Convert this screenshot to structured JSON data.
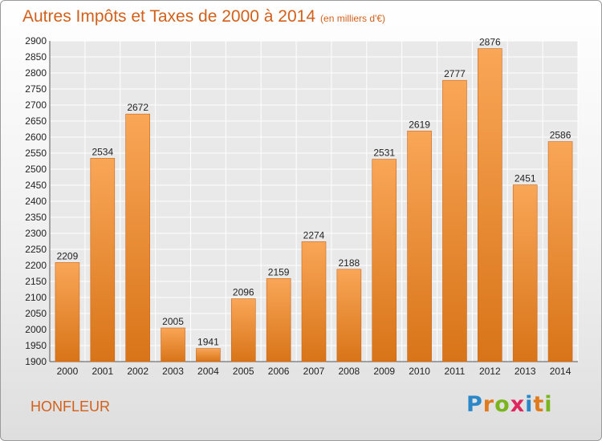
{
  "title": "Autres Impôts et Taxes de 2000 à 2014",
  "subtitle": "(en milliers d'€)",
  "city": "HONFLEUR",
  "logo": {
    "letters": [
      "P",
      "r",
      "o",
      "x",
      "i",
      "t",
      "i"
    ],
    "colors": [
      "#2a88c8",
      "#e07a1c",
      "#7ab51d",
      "#e0245e",
      "#2a88c8",
      "#e07a1c",
      "#7ab51d"
    ]
  },
  "colors": {
    "accent": "#d2601a",
    "bar_top": "#f9a657",
    "bar_bottom": "#d87418"
  },
  "chart_data": {
    "type": "bar",
    "title": "Autres Impôts et Taxes de 2000 à 2014",
    "categories": [
      "2000",
      "2001",
      "2002",
      "2003",
      "2004",
      "2005",
      "2006",
      "2007",
      "2008",
      "2009",
      "2010",
      "2011",
      "2012",
      "2013",
      "2014"
    ],
    "values": [
      2209,
      2534,
      2672,
      2005,
      1941,
      2096,
      2159,
      2274,
      2188,
      2531,
      2619,
      2777,
      2876,
      2451,
      2586
    ],
    "ylim": [
      1900,
      2900
    ],
    "yticks": [
      1900,
      1950,
      2000,
      2050,
      2100,
      2150,
      2200,
      2250,
      2300,
      2350,
      2400,
      2450,
      2500,
      2550,
      2600,
      2650,
      2700,
      2750,
      2800,
      2850,
      2900
    ],
    "grid": true,
    "show_value_labels": true
  }
}
